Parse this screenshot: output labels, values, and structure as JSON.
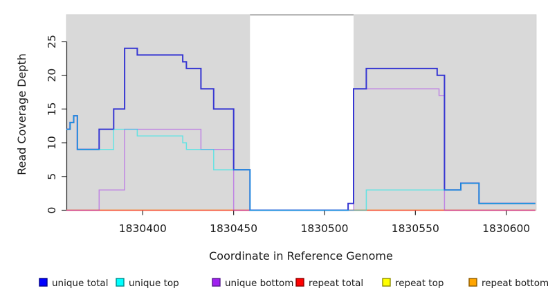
{
  "figure": {
    "background": "#ffffff",
    "panel_bg": "#d9d9d9",
    "highlight_band": {
      "x_start": 1830459,
      "x_end": 1830516,
      "fill": "#ffffff",
      "top_border": "#858585"
    }
  },
  "axes": {
    "y": {
      "label": "Read Coverage Depth",
      "ticks": [
        0,
        5,
        10,
        15,
        20,
        25
      ],
      "tick_labels": [
        "0",
        "5",
        "10",
        "15",
        "20",
        "25"
      ],
      "range": [
        0,
        29
      ]
    },
    "x": {
      "label": "Coordinate in Reference Genome",
      "ticks": [
        1830400,
        1830450,
        1830500,
        1830550,
        1830600
      ],
      "tick_labels": [
        "1830400",
        "1830450",
        "1830500",
        "1830550",
        "1830600"
      ],
      "range": [
        1830358,
        1830616.5
      ]
    }
  },
  "legend": {
    "items": [
      {
        "label": "unique total",
        "fill": "#0000FF",
        "border": "#00008B"
      },
      {
        "label": "unique top",
        "fill": "#00FFFF",
        "border": "#008B8B"
      },
      {
        "label": "unique bottom",
        "fill": "#A020F0",
        "border": "#551A8B"
      },
      {
        "label": "repeat total",
        "fill": "#FF0000",
        "border": "#8B0000"
      },
      {
        "label": "repeat top",
        "fill": "#FFFF00",
        "border": "#8B8B00"
      },
      {
        "label": "repeat bottom",
        "fill": "#FFA500",
        "border": "#8B5A00"
      }
    ]
  },
  "chart_data": {
    "type": "line",
    "step": true,
    "title": "",
    "xlabel": "Coordinate in Reference Genome",
    "ylabel": "Read Coverage Depth",
    "xlim": [
      1830358,
      1830616.5
    ],
    "ylim": [
      0,
      29
    ],
    "grid": false,
    "legend_position": "bottom",
    "x_end": 1830616,
    "draw_order": [
      "repeat top",
      "repeat bottom",
      "repeat total",
      "unique bottom",
      "unique total",
      "unique top"
    ],
    "series": [
      {
        "name": "unique total",
        "legend_color": "#0000FF",
        "render_color": "#3636d2",
        "points": [
          [
            1830358,
            12
          ],
          [
            1830360,
            13
          ],
          [
            1830362,
            14
          ],
          [
            1830364,
            9
          ],
          [
            1830376,
            12
          ],
          [
            1830384,
            15
          ],
          [
            1830390,
            24
          ],
          [
            1830397,
            23
          ],
          [
            1830422,
            22
          ],
          [
            1830424,
            21
          ],
          [
            1830432,
            18
          ],
          [
            1830439,
            15
          ],
          [
            1830450,
            6
          ],
          [
            1830459,
            0
          ],
          [
            1830513,
            1
          ],
          [
            1830516,
            18
          ],
          [
            1830523,
            21
          ],
          [
            1830562,
            20
          ],
          [
            1830566,
            3
          ],
          [
            1830575,
            4
          ],
          [
            1830585,
            1
          ]
        ]
      },
      {
        "name": "unique top",
        "legend_color": "#00FFFF",
        "render_color": "rgba(0,235,235,0.55)",
        "points": [
          [
            1830358,
            12
          ],
          [
            1830360,
            13
          ],
          [
            1830362,
            14
          ],
          [
            1830364,
            9
          ],
          [
            1830384,
            12
          ],
          [
            1830397,
            11
          ],
          [
            1830422,
            10
          ],
          [
            1830424,
            9
          ],
          [
            1830439,
            6
          ],
          [
            1830459,
            0
          ],
          [
            1830523,
            3
          ],
          [
            1830575,
            4
          ],
          [
            1830585,
            1
          ]
        ]
      },
      {
        "name": "unique bottom",
        "legend_color": "#A020F0",
        "render_color": "rgba(160,32,240,0.45)",
        "points": [
          [
            1830358,
            0
          ],
          [
            1830376,
            3
          ],
          [
            1830390,
            12
          ],
          [
            1830432,
            9
          ],
          [
            1830450,
            0
          ],
          [
            1830516,
            18
          ],
          [
            1830563,
            17
          ],
          [
            1830566,
            0
          ]
        ]
      },
      {
        "name": "repeat total",
        "legend_color": "#FF0000",
        "render_color": "rgba(235,0,110,0.55)",
        "points": [
          [
            1830358,
            0
          ]
        ]
      },
      {
        "name": "repeat top",
        "legend_color": "#FFFF00",
        "render_color": "rgba(255,255,0,0.9)",
        "points": [
          [
            1830358,
            0
          ]
        ]
      },
      {
        "name": "repeat bottom",
        "legend_color": "#FFA500",
        "render_color": "rgba(255,158,5,0.95)",
        "points": [
          [
            1830358,
            0
          ]
        ]
      }
    ]
  }
}
